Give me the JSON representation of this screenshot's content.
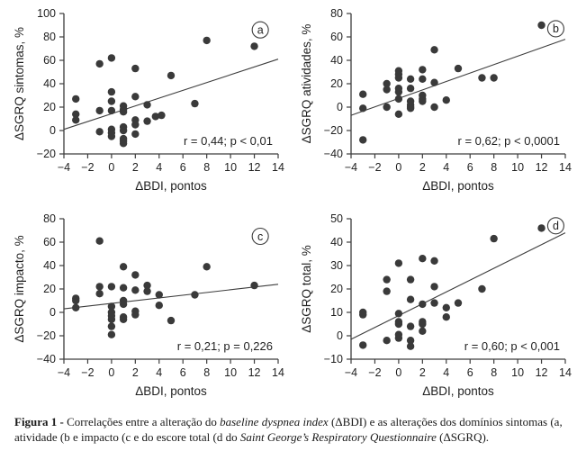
{
  "figure": {
    "caption": {
      "label": "Figura 1 -",
      "seg1": " Correlações entre a alteração do ",
      "italic1": "baseline dyspnea index",
      "seg2": " (ΔBDI) e as alterações dos domínios sintomas (a, atividade (b e impacto (c e do escore total (d do ",
      "italic2": "Saint George’s Respiratory Questionnaire",
      "seg3": " (ΔSGRQ)."
    }
  },
  "colors": {
    "point": "#3a3a3a",
    "axis": "#3d3d3d",
    "text": "#1f1f1f"
  },
  "chart_data": [
    {
      "type": "scatter",
      "panel_label": "a",
      "ylabel": "ΔSGRQ sintomas, %",
      "xlabel": "ΔBDI, pontos",
      "ylim": [
        -20,
        100
      ],
      "yticks": [
        -20,
        0,
        20,
        40,
        60,
        80,
        100
      ],
      "xlim": [
        -4,
        14
      ],
      "xticks": [
        -4,
        -2,
        0,
        2,
        4,
        6,
        8,
        10,
        12,
        14
      ],
      "grid": false,
      "stats": "r = 0,44; p < 0,01",
      "regression_line": {
        "x1": -4,
        "y1": 1,
        "x2": 14,
        "y2": 61
      },
      "label_pos": [
        12.5,
        86
      ],
      "points": [
        [
          -3,
          27
        ],
        [
          -3,
          14
        ],
        [
          -3,
          9
        ],
        [
          -1,
          57
        ],
        [
          -1,
          17
        ],
        [
          -1,
          -1
        ],
        [
          0,
          62
        ],
        [
          0,
          33
        ],
        [
          0,
          25
        ],
        [
          0,
          17
        ],
        [
          0,
          1
        ],
        [
          0,
          -2
        ],
        [
          0,
          -5
        ],
        [
          1,
          21
        ],
        [
          1,
          18
        ],
        [
          1,
          16
        ],
        [
          1,
          3
        ],
        [
          1,
          0
        ],
        [
          1,
          -7
        ],
        [
          1,
          -9
        ],
        [
          1,
          -11
        ],
        [
          2,
          53
        ],
        [
          2,
          29
        ],
        [
          2,
          9
        ],
        [
          2,
          5
        ],
        [
          2,
          -3
        ],
        [
          3,
          22
        ],
        [
          3,
          8
        ],
        [
          3.7,
          12
        ],
        [
          4.2,
          13
        ],
        [
          5,
          47
        ],
        [
          7,
          23
        ],
        [
          8,
          77
        ],
        [
          12,
          72
        ]
      ]
    },
    {
      "type": "scatter",
      "panel_label": "b",
      "ylabel": "ΔSGRQ atividades, %",
      "xlabel": "ΔBDI, pontos",
      "ylim": [
        -40,
        80
      ],
      "yticks": [
        -40,
        -20,
        0,
        20,
        40,
        60,
        80
      ],
      "xlim": [
        -4,
        14
      ],
      "xticks": [
        -4,
        -2,
        0,
        2,
        4,
        6,
        8,
        10,
        12,
        14
      ],
      "grid": false,
      "stats": "r = 0,62; p < 0,0001",
      "regression_line": {
        "x1": -4,
        "y1": -7,
        "x2": 14,
        "y2": 58
      },
      "label_pos": [
        13.2,
        67
      ],
      "points": [
        [
          -3,
          11
        ],
        [
          -3,
          -1
        ],
        [
          -3,
          -28
        ],
        [
          -1,
          20
        ],
        [
          -1,
          15
        ],
        [
          -1,
          0
        ],
        [
          0,
          31
        ],
        [
          0,
          28
        ],
        [
          0,
          25
        ],
        [
          0,
          16
        ],
        [
          0,
          13
        ],
        [
          0,
          7
        ],
        [
          0,
          -6
        ],
        [
          1,
          24
        ],
        [
          1,
          16
        ],
        [
          1,
          5
        ],
        [
          1,
          2
        ],
        [
          1,
          0
        ],
        [
          1,
          -1
        ],
        [
          2,
          32
        ],
        [
          2,
          24
        ],
        [
          2,
          10
        ],
        [
          2,
          7
        ],
        [
          2,
          5
        ],
        [
          3,
          49
        ],
        [
          3,
          21
        ],
        [
          3,
          0
        ],
        [
          4,
          6
        ],
        [
          5,
          33
        ],
        [
          7,
          25
        ],
        [
          8,
          25
        ],
        [
          12,
          70
        ]
      ]
    },
    {
      "type": "scatter",
      "panel_label": "c",
      "ylabel": "ΔSGRQ impacto, %",
      "xlabel": "ΔBDI, pontos",
      "ylim": [
        -40,
        80
      ],
      "yticks": [
        -40,
        -20,
        0,
        20,
        40,
        60,
        80
      ],
      "xlim": [
        -4,
        14
      ],
      "xticks": [
        -4,
        -2,
        0,
        2,
        4,
        6,
        8,
        10,
        12,
        14
      ],
      "grid": false,
      "stats": "r = 0,21; p = 0,226",
      "regression_line": {
        "x1": -4,
        "y1": 3,
        "x2": 14,
        "y2": 24
      },
      "label_pos": [
        12.5,
        65
      ],
      "points": [
        [
          -3,
          12
        ],
        [
          -3,
          10
        ],
        [
          -3,
          4
        ],
        [
          -1,
          61
        ],
        [
          -1,
          22
        ],
        [
          -1,
          16
        ],
        [
          0,
          22
        ],
        [
          0,
          5
        ],
        [
          0,
          0
        ],
        [
          0,
          -3
        ],
        [
          0,
          -6
        ],
        [
          0,
          -12
        ],
        [
          0,
          -19
        ],
        [
          1,
          39
        ],
        [
          1,
          21
        ],
        [
          1,
          10
        ],
        [
          1,
          7
        ],
        [
          1,
          -4
        ],
        [
          1,
          -6
        ],
        [
          2,
          32
        ],
        [
          2,
          19
        ],
        [
          2,
          1
        ],
        [
          2,
          -2
        ],
        [
          3,
          23
        ],
        [
          3,
          18
        ],
        [
          4,
          15
        ],
        [
          4,
          6
        ],
        [
          5,
          -7
        ],
        [
          7,
          15
        ],
        [
          8,
          39
        ],
        [
          12,
          23
        ]
      ]
    },
    {
      "type": "scatter",
      "panel_label": "d",
      "ylabel": "ΔSGRQ total, %",
      "xlabel": "ΔBDI, pontos",
      "ylim": [
        -10,
        50
      ],
      "yticks": [
        -10,
        0,
        10,
        20,
        30,
        40,
        50
      ],
      "xlim": [
        -4,
        14
      ],
      "xticks": [
        -4,
        -2,
        0,
        2,
        4,
        6,
        8,
        10,
        12,
        14
      ],
      "grid": false,
      "stats": "r = 0,60; p < 0,001",
      "regression_line": {
        "x1": -4,
        "y1": -1.5,
        "x2": 14,
        "y2": 44
      },
      "label_pos": [
        13.2,
        47
      ],
      "points": [
        [
          -3,
          10
        ],
        [
          -3,
          9
        ],
        [
          -3,
          -4
        ],
        [
          -1,
          24
        ],
        [
          -1,
          19
        ],
        [
          -1,
          -2
        ],
        [
          0,
          31
        ],
        [
          0,
          9.5
        ],
        [
          0,
          6
        ],
        [
          0,
          5
        ],
        [
          0,
          0.5
        ],
        [
          0,
          -1
        ],
        [
          1,
          24
        ],
        [
          1,
          15.5
        ],
        [
          1,
          4
        ],
        [
          1,
          -2
        ],
        [
          1,
          -4.5
        ],
        [
          2,
          33
        ],
        [
          2,
          13.5
        ],
        [
          2,
          6
        ],
        [
          2,
          5
        ],
        [
          2,
          2
        ],
        [
          3,
          32
        ],
        [
          3,
          21
        ],
        [
          3,
          14
        ],
        [
          4,
          12
        ],
        [
          4,
          8
        ],
        [
          5,
          14
        ],
        [
          7,
          20
        ],
        [
          8,
          41.5
        ],
        [
          12,
          46
        ]
      ]
    }
  ]
}
